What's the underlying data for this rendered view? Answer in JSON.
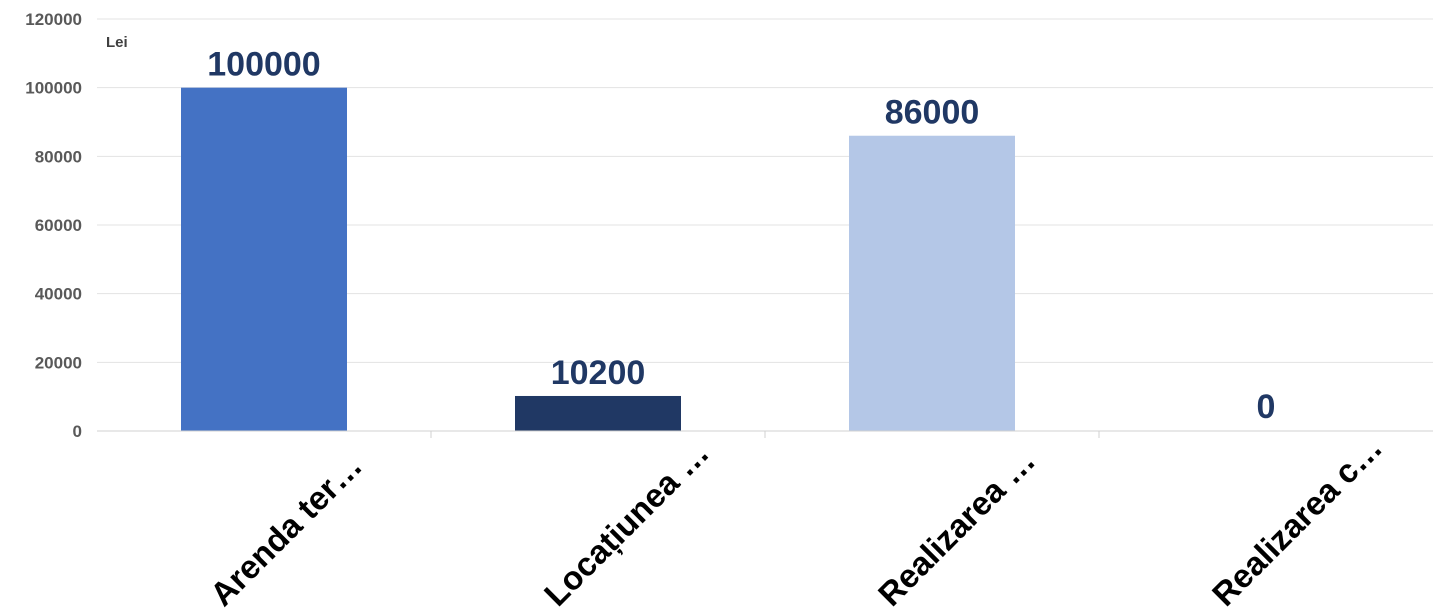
{
  "chart_data": {
    "type": "bar",
    "unit_label": "Lei",
    "categories": [
      "Arenda ter…",
      "Locațiunea …",
      "Realizarea …",
      "Realizarea c…"
    ],
    "values": [
      100000,
      10200,
      86000,
      0
    ],
    "data_labels": [
      "100000",
      "10200",
      "86000",
      "0"
    ],
    "bar_colors": [
      "#4472C4",
      "#203864",
      "#B4C7E7",
      "#D6DCE5"
    ],
    "ylim": [
      0,
      120000
    ],
    "yticks": [
      0,
      20000,
      40000,
      60000,
      80000,
      100000,
      120000
    ],
    "grid": true,
    "title": "",
    "xlabel": "",
    "ylabel": ""
  }
}
